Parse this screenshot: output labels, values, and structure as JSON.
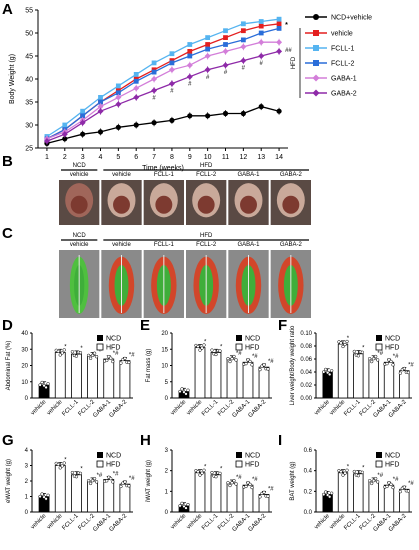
{
  "panel_labels": {
    "a": "A",
    "b": "B",
    "c": "C",
    "d": "D",
    "e": "E",
    "f": "F",
    "g": "G",
    "h": "H",
    "i": "I"
  },
  "colors": {
    "ncd": "#000000",
    "vehicle": "#e41f1f",
    "fcll1": "#55b4f0",
    "fcll2": "#2a6dd9",
    "gaba1": "#d37ed9",
    "gaba2": "#8e2aa8",
    "hfd_bar": "#ffffff",
    "mouse_bg": "#7a7a7a"
  },
  "chart_data": [
    {
      "type": "line",
      "ylabel": "Body Weight (g)",
      "xlabel": "Time (weeks)",
      "x": [
        1,
        2,
        3,
        4,
        5,
        6,
        7,
        8,
        9,
        10,
        11,
        12,
        13,
        14
      ],
      "ylim": [
        25,
        55
      ],
      "yticks": [
        25,
        30,
        35,
        40,
        45,
        50,
        55
      ],
      "series": [
        {
          "name": "NCD+vehicle",
          "values": [
            26,
            27,
            28,
            28.5,
            29.5,
            30,
            30.5,
            31,
            32,
            32,
            32.5,
            32.5,
            34,
            33
          ]
        },
        {
          "name": "vehicle",
          "values": [
            27,
            29,
            32,
            35,
            37.5,
            40,
            42,
            44,
            46,
            47.5,
            49,
            50.5,
            51.5,
            52
          ]
        },
        {
          "name": "FCLL-1",
          "values": [
            27.5,
            30,
            33,
            36,
            38.5,
            41,
            43.5,
            45.5,
            47.5,
            49,
            50.5,
            52,
            52.5,
            53
          ]
        },
        {
          "name": "FCLL-2",
          "values": [
            27,
            29,
            32,
            35,
            37,
            39.5,
            41.5,
            43.5,
            45,
            46.5,
            47.5,
            48.5,
            50,
            51
          ]
        },
        {
          "name": "GABA-1",
          "values": [
            27,
            28.5,
            31,
            34,
            36,
            38,
            40,
            42,
            43,
            45,
            46,
            47,
            48,
            48
          ]
        },
        {
          "name": "GABA-2",
          "values": [
            26.5,
            28,
            30.5,
            33,
            34.5,
            36,
            37.5,
            39,
            40.5,
            42,
            43,
            44,
            45,
            46
          ]
        }
      ],
      "group_label": "HFD",
      "annotations": {
        "star": "*",
        "hash": "#",
        "double_hash": "##"
      }
    },
    {
      "type": "bar",
      "ylabel": "Abdominal Fat (%)",
      "categories": [
        "vehicle",
        "vehicle",
        "FCLL-1",
        "FCLL-2",
        "GABA-1",
        "GABA-2"
      ],
      "values": [
        8,
        28,
        27,
        26,
        24,
        23
      ],
      "ylim": [
        0,
        40
      ],
      "yticks": [
        0,
        10,
        20,
        30,
        40
      ],
      "legend": [
        "NCD",
        "HFD"
      ],
      "sig": [
        "",
        "*",
        "*",
        "*#",
        "*#",
        "*#"
      ]
    },
    {
      "type": "bar",
      "ylabel": "Fat mass (g)",
      "categories": [
        "vehicle",
        "vehicle",
        "FCLL-1",
        "FCLL-2",
        "GABA-1",
        "GABA-2"
      ],
      "values": [
        2,
        15.5,
        14,
        12,
        11,
        9.5
      ],
      "ylim": [
        0,
        20
      ],
      "yticks": [
        0,
        5,
        10,
        15,
        20
      ],
      "legend": [
        "NCD",
        "HFD"
      ],
      "sig": [
        "",
        "*",
        "*",
        "*#",
        "*#",
        "*#"
      ]
    },
    {
      "type": "bar",
      "ylabel": "Liver weight/Body weight ratio",
      "categories": [
        "vehicle",
        "vehicle",
        "FCLL-1",
        "FCLL-2",
        "GABA-1",
        "GABA-2"
      ],
      "values": [
        0.04,
        0.083,
        0.068,
        0.06,
        0.055,
        0.042
      ],
      "ylim": [
        0,
        0.1
      ],
      "yticks": [
        0,
        0.02,
        0.04,
        0.06,
        0.08,
        0.1
      ],
      "ytick_labels": [
        "0.00",
        "0.02",
        "0.04",
        "0.06",
        "0.08",
        "0.10"
      ],
      "legend": [
        "NCD",
        "HFD"
      ],
      "sig": [
        "",
        "*",
        "*",
        "*#",
        "*#",
        "*#"
      ]
    },
    {
      "type": "bar",
      "ylabel": "eWAT weight (g)",
      "categories": [
        "vehicle",
        "vehicle",
        "FCLL-1",
        "FCLL-2",
        "GABA-1",
        "GABA-2"
      ],
      "values": [
        1.0,
        3.0,
        2.4,
        2.0,
        2.1,
        1.8
      ],
      "ylim": [
        0,
        4
      ],
      "yticks": [
        0,
        1,
        2,
        3,
        4
      ],
      "legend": [
        "NCD",
        "HFD"
      ],
      "sig": [
        "",
        "*",
        "*",
        "*#",
        "*#",
        "*#"
      ]
    },
    {
      "type": "bar",
      "ylabel": "iWAT weight (g)",
      "categories": [
        "vehicle",
        "vehicle",
        "FCLL-1",
        "FCLL-2",
        "GABA-1",
        "GABA-2"
      ],
      "values": [
        0.3,
        1.9,
        1.8,
        1.4,
        1.3,
        0.85
      ],
      "ylim": [
        0,
        3
      ],
      "yticks": [
        0,
        1,
        2,
        3
      ],
      "legend": [
        "NCD",
        "HFD"
      ],
      "sig": [
        "",
        "*",
        "*",
        "*#",
        "*#",
        "*#"
      ]
    },
    {
      "type": "bar",
      "ylabel": "BAT weight (g)",
      "categories": [
        "vehicle",
        "vehicle",
        "FCLL-1",
        "FCLL-2",
        "GABA-1",
        "GABA-2"
      ],
      "values": [
        0.17,
        0.38,
        0.37,
        0.3,
        0.26,
        0.22
      ],
      "ylim": [
        0,
        0.6
      ],
      "yticks": [
        0,
        0.2,
        0.4,
        0.6
      ],
      "ytick_labels": [
        "0.0",
        "0.2",
        "0.4",
        "0.6"
      ],
      "legend": [
        "NCD",
        "HFD"
      ],
      "sig": [
        "",
        "*",
        "*",
        "*#",
        "*#",
        "*#"
      ]
    }
  ],
  "photos": {
    "b": {
      "ncd_label": "NCD",
      "hfd_label": "HFD",
      "labels": [
        "vehicle",
        "vehicle",
        "FCLL-1",
        "FCLL-2",
        "GABA-1",
        "GABA-2"
      ]
    },
    "c": {
      "ncd_label": "NCD",
      "hfd_label": "HFD",
      "labels": [
        "vehicle",
        "vehicle",
        "FCLL-1",
        "FCLL-2",
        "GABA-1",
        "GABA-2"
      ]
    }
  }
}
